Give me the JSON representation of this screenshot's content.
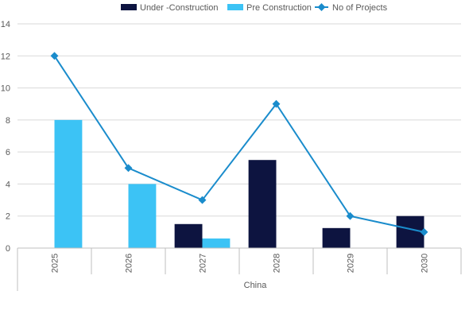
{
  "chart_data": {
    "type": "bar",
    "group_label": "China",
    "categories": [
      "2025",
      "2026",
      "2027",
      "2028",
      "2029",
      "2030"
    ],
    "series": [
      {
        "name": "Under -Construction",
        "type": "bar",
        "color": "#0d1440",
        "values": [
          0,
          0,
          1.5,
          5.5,
          1.25,
          2
        ]
      },
      {
        "name": "Pre Construction",
        "type": "bar",
        "color": "#3cc3f5",
        "values": [
          8,
          4,
          0.6,
          0,
          0,
          0
        ]
      },
      {
        "name": "No of Projects",
        "type": "line",
        "color": "#1a8ccc",
        "values": [
          12,
          5,
          3,
          9,
          2,
          1
        ]
      }
    ],
    "ylim": [
      0,
      14
    ],
    "yticks": [
      0,
      2,
      4,
      6,
      8,
      10,
      12,
      14
    ],
    "grid": true,
    "legend_position": "top"
  }
}
